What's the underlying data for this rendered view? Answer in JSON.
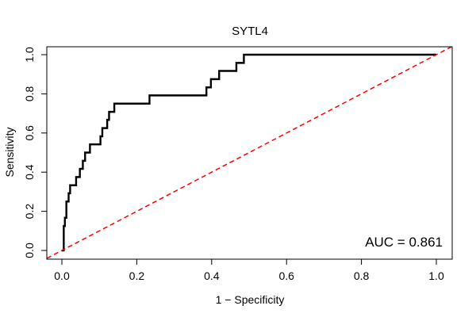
{
  "chart_data": {
    "type": "line",
    "title": "SYTL4",
    "xlabel": "1 − Specificity",
    "ylabel": "Sensitivity",
    "xlim": [
      0.0,
      1.0
    ],
    "ylim": [
      0.0,
      1.0
    ],
    "x_ticks": [
      "0.0",
      "0.2",
      "0.4",
      "0.6",
      "0.8",
      "1.0"
    ],
    "y_ticks": [
      "0.0",
      "0.2",
      "0.4",
      "0.6",
      "0.8",
      "1.0"
    ],
    "grid": false,
    "annotation": "AUC = 0.861",
    "series": [
      {
        "color": "#000000",
        "style": "step",
        "points": [
          [
            0.0,
            0.0
          ],
          [
            0.005,
            0.0
          ],
          [
            0.005,
            0.125
          ],
          [
            0.008,
            0.125
          ],
          [
            0.008,
            0.167
          ],
          [
            0.012,
            0.167
          ],
          [
            0.012,
            0.25
          ],
          [
            0.018,
            0.25
          ],
          [
            0.018,
            0.292
          ],
          [
            0.022,
            0.292
          ],
          [
            0.022,
            0.333
          ],
          [
            0.038,
            0.333
          ],
          [
            0.038,
            0.375
          ],
          [
            0.048,
            0.375
          ],
          [
            0.048,
            0.417
          ],
          [
            0.056,
            0.417
          ],
          [
            0.056,
            0.458
          ],
          [
            0.062,
            0.458
          ],
          [
            0.062,
            0.5
          ],
          [
            0.075,
            0.5
          ],
          [
            0.075,
            0.542
          ],
          [
            0.103,
            0.542
          ],
          [
            0.103,
            0.583
          ],
          [
            0.108,
            0.583
          ],
          [
            0.108,
            0.625
          ],
          [
            0.121,
            0.625
          ],
          [
            0.121,
            0.667
          ],
          [
            0.126,
            0.667
          ],
          [
            0.126,
            0.708
          ],
          [
            0.14,
            0.708
          ],
          [
            0.14,
            0.75
          ],
          [
            0.234,
            0.75
          ],
          [
            0.234,
            0.792
          ],
          [
            0.386,
            0.792
          ],
          [
            0.386,
            0.833
          ],
          [
            0.398,
            0.833
          ],
          [
            0.398,
            0.875
          ],
          [
            0.42,
            0.875
          ],
          [
            0.42,
            0.917
          ],
          [
            0.466,
            0.917
          ],
          [
            0.466,
            0.958
          ],
          [
            0.486,
            0.958
          ],
          [
            0.486,
            1.0
          ],
          [
            1.0,
            1.0
          ]
        ]
      },
      {
        "color": "#ff0000",
        "style": "dashed",
        "points": [
          [
            -0.04,
            -0.04
          ],
          [
            1.04,
            1.04
          ]
        ]
      }
    ]
  }
}
